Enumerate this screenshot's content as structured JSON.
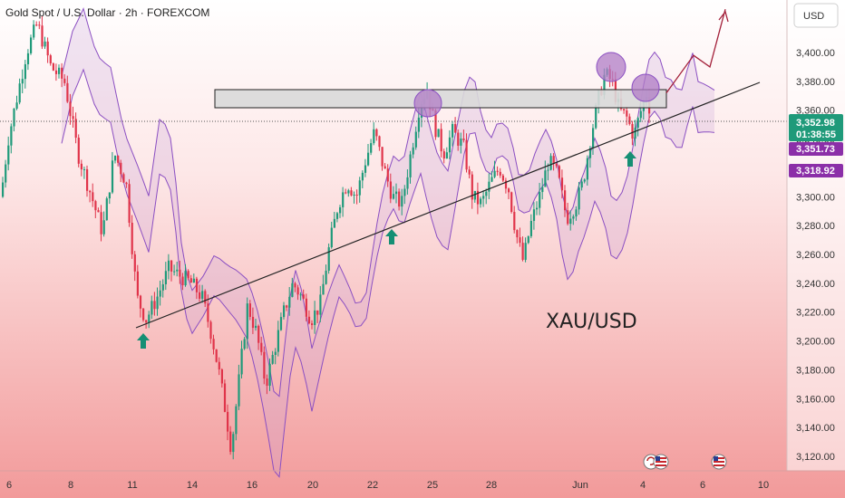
{
  "header": {
    "symbol_title": "Gold Spot / U.S. Dollar · 2h · FOREXCOM",
    "currency_button": "USD"
  },
  "annotations": {
    "pair_label": "XAU/USD"
  },
  "price_tags": {
    "last_price": "3,352.98",
    "countdown": "01:38:55",
    "cloud_upper": "3,351.73",
    "cloud_lower": "3,318.92"
  },
  "colors": {
    "up_candle": "#1f9a7a",
    "down_candle": "#e0344a",
    "cloud_line": "#8b4fc2",
    "trendline": "#222222",
    "arrow_green": "#158f74",
    "circle_fill": "#b07cc6",
    "zone_fill": "#d9d9d9",
    "last_price_tag": "#1f9a7a",
    "cloud_tag": "#8b2fa8",
    "bg_top": "#ffffff",
    "bg_bottom": "#f29a9a"
  },
  "chart_data": {
    "type": "candlestick",
    "title": "Gold Spot / U.S. Dollar · 2h · FOREXCOM",
    "y_ticks": [
      3120,
      3140,
      3160,
      3180,
      3200,
      3220,
      3240,
      3260,
      3280,
      3300,
      3320,
      3340,
      3360,
      3380,
      3400
    ],
    "y_tick_labels": [
      "3,120.00",
      "3,140.00",
      "3,160.00",
      "3,180.00",
      "3,200.00",
      "3,220.00",
      "3,240.00",
      "3,260.00",
      "3,280.00",
      "3,300.00",
      "3,320.00",
      "3,340.00",
      "3,360.00",
      "3,380.00",
      "3,400.00"
    ],
    "ylim": [
      3112,
      3430
    ],
    "x_tick_labels": [
      "6",
      "8",
      "11",
      "14",
      "16",
      "20",
      "22",
      "25",
      "28",
      "Jun",
      "4",
      "6",
      "10"
    ],
    "last_price": 3352.98,
    "resistance_zone": [
      3364,
      3384
    ],
    "price_path": [
      [
        0,
        3300
      ],
      [
        8,
        3340
      ],
      [
        18,
        3370
      ],
      [
        28,
        3400
      ],
      [
        40,
        3420
      ],
      [
        55,
        3390
      ],
      [
        70,
        3380
      ],
      [
        85,
        3330
      ],
      [
        100,
        3300
      ],
      [
        112,
        3275
      ],
      [
        125,
        3330
      ],
      [
        138,
        3310
      ],
      [
        150,
        3230
      ],
      [
        160,
        3215
      ],
      [
        172,
        3230
      ],
      [
        185,
        3250
      ],
      [
        198,
        3245
      ],
      [
        210,
        3240
      ],
      [
        222,
        3230
      ],
      [
        232,
        3205
      ],
      [
        240,
        3180
      ],
      [
        248,
        3150
      ],
      [
        254,
        3125
      ],
      [
        262,
        3170
      ],
      [
        272,
        3225
      ],
      [
        282,
        3205
      ],
      [
        292,
        3170
      ],
      [
        302,
        3195
      ],
      [
        312,
        3220
      ],
      [
        322,
        3240
      ],
      [
        332,
        3230
      ],
      [
        342,
        3215
      ],
      [
        352,
        3225
      ],
      [
        362,
        3265
      ],
      [
        372,
        3295
      ],
      [
        382,
        3310
      ],
      [
        392,
        3300
      ],
      [
        402,
        3325
      ],
      [
        412,
        3345
      ],
      [
        422,
        3320
      ],
      [
        432,
        3300
      ],
      [
        442,
        3295
      ],
      [
        452,
        3330
      ],
      [
        462,
        3365
      ],
      [
        470,
        3375
      ],
      [
        478,
        3350
      ],
      [
        488,
        3330
      ],
      [
        498,
        3345
      ],
      [
        510,
        3335
      ],
      [
        520,
        3300
      ],
      [
        530,
        3295
      ],
      [
        540,
        3310
      ],
      [
        550,
        3320
      ],
      [
        560,
        3305
      ],
      [
        568,
        3275
      ],
      [
        576,
        3255
      ],
      [
        584,
        3280
      ],
      [
        594,
        3300
      ],
      [
        604,
        3325
      ],
      [
        614,
        3315
      ],
      [
        624,
        3285
      ],
      [
        634,
        3295
      ],
      [
        642,
        3310
      ],
      [
        650,
        3340
      ],
      [
        658,
        3365
      ],
      [
        666,
        3385
      ],
      [
        674,
        3380
      ],
      [
        682,
        3360
      ],
      [
        690,
        3355
      ],
      [
        698,
        3342
      ],
      [
        706,
        3360
      ],
      [
        712,
        3372
      ],
      [
        718,
        3353
      ]
    ],
    "projection_path": [
      [
        735,
        3372
      ],
      [
        765,
        3398
      ],
      [
        783,
        3390
      ],
      [
        800,
        3430
      ]
    ]
  }
}
